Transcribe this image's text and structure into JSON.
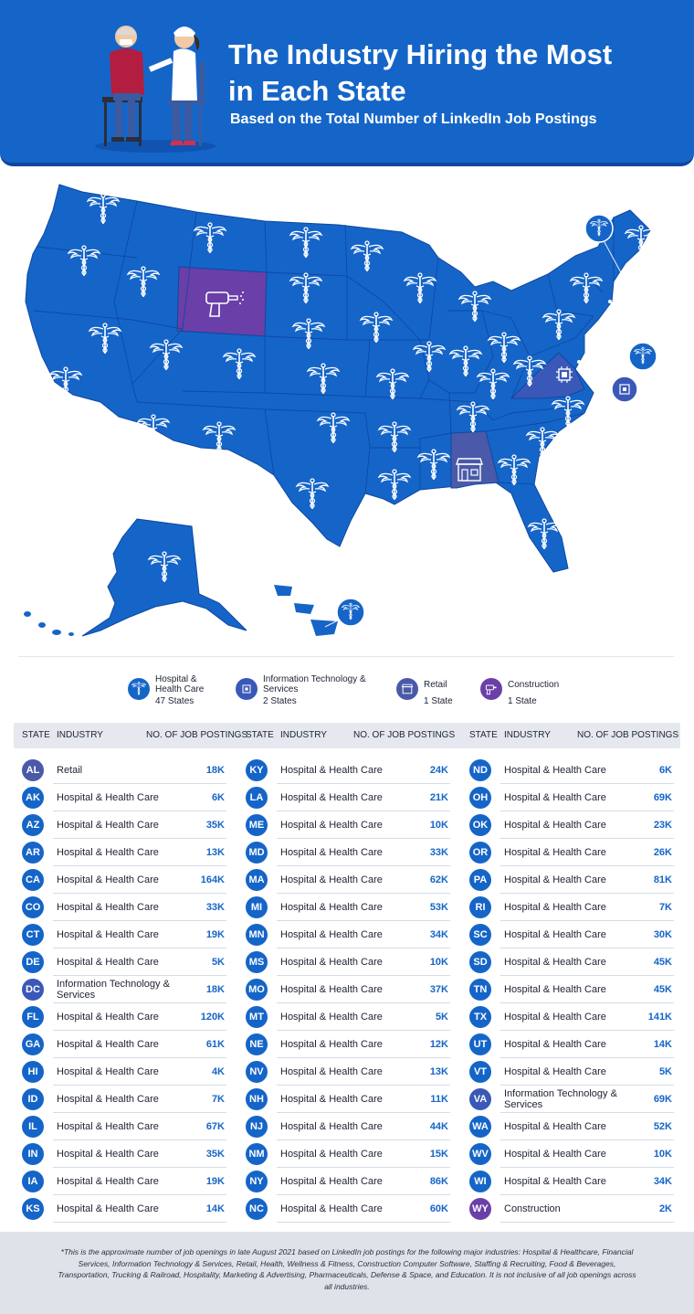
{
  "header": {
    "title": "The Industry Hiring the Most in Each State",
    "subtitle": "Based on the Total Number of LinkedIn Job Postings"
  },
  "colors": {
    "primary": "#1565c8",
    "construction": "#6a3fa8",
    "tech": "#3a58b8",
    "retail": "#4a5aa8",
    "footer": "#dfe2e8"
  },
  "legend": [
    {
      "label": "Hospital & Health Care",
      "count": "47 States",
      "icon": "caduceus-icon"
    },
    {
      "label": "Information Technology & Services",
      "count": "2 States",
      "icon": "chip-icon"
    },
    {
      "label": "Retail",
      "count": "1 State",
      "icon": "store-icon"
    },
    {
      "label": "Construction",
      "count": "1 State",
      "icon": "drill-icon"
    }
  ],
  "table": {
    "headers": {
      "state": "STATE",
      "industry": "INDUSTRY",
      "postings": "NO. OF JOB POSTINGS"
    },
    "rows": [
      {
        "state": "AL",
        "industry": "Retail",
        "postings": "18K"
      },
      {
        "state": "AK",
        "industry": "Hospital & Health Care",
        "postings": "6K"
      },
      {
        "state": "AZ",
        "industry": "Hospital & Health Care",
        "postings": "35K"
      },
      {
        "state": "AR",
        "industry": "Hospital & Health Care",
        "postings": "13K"
      },
      {
        "state": "CA",
        "industry": "Hospital & Health Care",
        "postings": "164K"
      },
      {
        "state": "CO",
        "industry": "Hospital & Health Care",
        "postings": "33K"
      },
      {
        "state": "CT",
        "industry": "Hospital & Health Care",
        "postings": "19K"
      },
      {
        "state": "DE",
        "industry": "Hospital & Health Care",
        "postings": "5K"
      },
      {
        "state": "DC",
        "industry": "Information Technology & Services",
        "postings": "18K"
      },
      {
        "state": "FL",
        "industry": "Hospital & Health Care",
        "postings": "120K"
      },
      {
        "state": "GA",
        "industry": "Hospital & Health Care",
        "postings": "61K"
      },
      {
        "state": "HI",
        "industry": "Hospital & Health Care",
        "postings": "4K"
      },
      {
        "state": "ID",
        "industry": "Hospital & Health Care",
        "postings": "7K"
      },
      {
        "state": "IL",
        "industry": "Hospital & Health Care",
        "postings": "67K"
      },
      {
        "state": "IN",
        "industry": "Hospital & Health Care",
        "postings": "35K"
      },
      {
        "state": "IA",
        "industry": "Hospital & Health Care",
        "postings": "19K"
      },
      {
        "state": "KS",
        "industry": "Hospital & Health Care",
        "postings": "14K"
      },
      {
        "state": "KY",
        "industry": "Hospital & Health Care",
        "postings": "24K"
      },
      {
        "state": "LA",
        "industry": "Hospital & Health Care",
        "postings": "21K"
      },
      {
        "state": "ME",
        "industry": "Hospital & Health Care",
        "postings": "10K"
      },
      {
        "state": "MD",
        "industry": "Hospital & Health Care",
        "postings": "33K"
      },
      {
        "state": "MA",
        "industry": "Hospital & Health Care",
        "postings": "62K"
      },
      {
        "state": "MI",
        "industry": "Hospital & Health Care",
        "postings": "53K"
      },
      {
        "state": "MN",
        "industry": "Hospital & Health Care",
        "postings": "34K"
      },
      {
        "state": "MS",
        "industry": "Hospital & Health Care",
        "postings": "10K"
      },
      {
        "state": "MO",
        "industry": "Hospital & Health Care",
        "postings": "37K"
      },
      {
        "state": "MT",
        "industry": "Hospital & Health Care",
        "postings": "5K"
      },
      {
        "state": "NE",
        "industry": "Hospital & Health Care",
        "postings": "12K"
      },
      {
        "state": "NV",
        "industry": "Hospital & Health Care",
        "postings": "13K"
      },
      {
        "state": "NH",
        "industry": "Hospital & Health Care",
        "postings": "11K"
      },
      {
        "state": "NJ",
        "industry": "Hospital & Health Care",
        "postings": "44K"
      },
      {
        "state": "NM",
        "industry": "Hospital & Health Care",
        "postings": "15K"
      },
      {
        "state": "NY",
        "industry": "Hospital & Health Care",
        "postings": "86K"
      },
      {
        "state": "NC",
        "industry": "Hospital & Health Care",
        "postings": "60K"
      },
      {
        "state": "ND",
        "industry": "Hospital & Health Care",
        "postings": "6K"
      },
      {
        "state": "OH",
        "industry": "Hospital & Health Care",
        "postings": "69K"
      },
      {
        "state": "OK",
        "industry": "Hospital & Health Care",
        "postings": "23K"
      },
      {
        "state": "OR",
        "industry": "Hospital & Health Care",
        "postings": "26K"
      },
      {
        "state": "PA",
        "industry": "Hospital & Health Care",
        "postings": "81K"
      },
      {
        "state": "RI",
        "industry": "Hospital & Health Care",
        "postings": "7K"
      },
      {
        "state": "SC",
        "industry": "Hospital & Health Care",
        "postings": "30K"
      },
      {
        "state": "SD",
        "industry": "Hospital & Health Care",
        "postings": "45K"
      },
      {
        "state": "TN",
        "industry": "Hospital & Health Care",
        "postings": "45K"
      },
      {
        "state": "TX",
        "industry": "Hospital & Health Care",
        "postings": "141K"
      },
      {
        "state": "UT",
        "industry": "Hospital & Health Care",
        "postings": "14K"
      },
      {
        "state": "VT",
        "industry": "Hospital & Health Care",
        "postings": "5K"
      },
      {
        "state": "VA",
        "industry": "Information Technology & Services",
        "postings": "69K"
      },
      {
        "state": "WA",
        "industry": "Hospital & Health Care",
        "postings": "52K"
      },
      {
        "state": "WV",
        "industry": "Hospital & Health Care",
        "postings": "10K"
      },
      {
        "state": "WI",
        "industry": "Hospital & Health Care",
        "postings": "34K"
      },
      {
        "state": "WY",
        "industry": "Construction",
        "postings": "2K"
      }
    ]
  },
  "footnote": "*This is the approximate number of job openings in late August 2021 based on LinkedIn job postings for the following major industries: Hospital & Healthcare, Financial Services, Information Technology & Services, Retail, Health, Wellness & Fitness, Construction Computer Software, Staffing & Recruiting, Food & Beverages, Transportation, Trucking & Railroad, Hospitality, Marketing & Advertising, Pharmaceuticals, Defense & Space, and Education. It is not inclusive of all job openings across all industries."
}
